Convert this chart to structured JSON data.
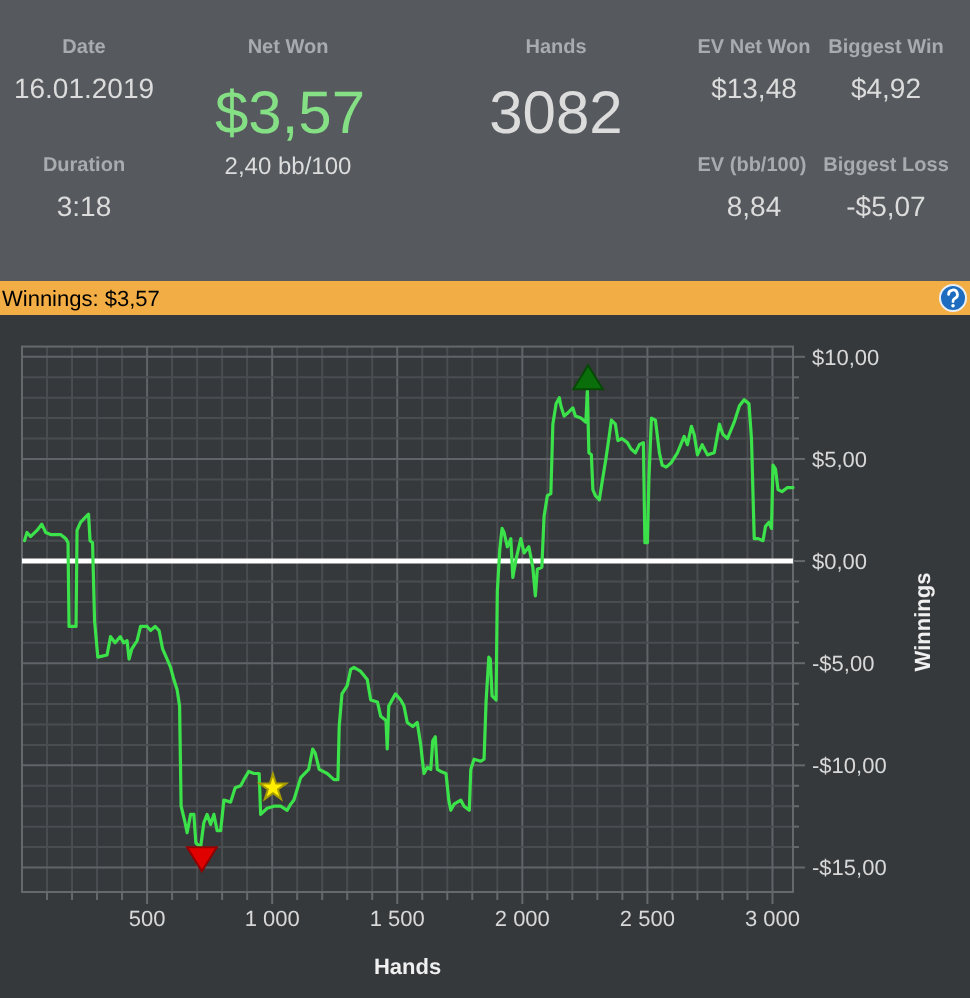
{
  "chart_data": [
    {
      "type": "other",
      "annotations": [
        "Date",
        "16.01.2019",
        "Net Won",
        "$3,57",
        "2,40 bb/100",
        "Hands",
        "3082",
        "EV Net Won",
        "$13,48",
        "Biggest Win",
        "$4,92",
        "Duration",
        "3:18",
        "EV (bb/100)",
        "8,84",
        "Biggest Loss",
        "-$5,07"
      ],
      "colors": [
        "#a9acaf",
        "#dcdcdc",
        "#a9acaf",
        "#85e085",
        "#dcdcdc",
        "#a9acaf",
        "#dcdcdc",
        "#a9acaf",
        "#dcdcdc",
        "#a9acaf",
        "#dcdcdc",
        "#a9acaf",
        "#dcdcdc",
        "#a9acaf",
        "#dcdcdc",
        "#a9acaf",
        "#dcdcdc"
      ]
    },
    {
      "type": "line",
      "title": "Winnings: $3,57",
      "xlabel": "Hands",
      "ylabel": "Winnings",
      "xlim": [
        0,
        3082
      ],
      "ylim": [
        -16.2,
        10.5
      ],
      "xticks": [
        {
          "value": 100,
          "label": null
        },
        {
          "value": 200,
          "label": null
        },
        {
          "value": 300,
          "label": null
        },
        {
          "value": 400,
          "label": null
        },
        {
          "value": 500,
          "label": "500"
        },
        {
          "value": 600,
          "label": null
        },
        {
          "value": 700,
          "label": null
        },
        {
          "value": 800,
          "label": null
        },
        {
          "value": 900,
          "label": null
        },
        {
          "value": 1000,
          "label": "1 000"
        },
        {
          "value": 1100,
          "label": null
        },
        {
          "value": 1200,
          "label": null
        },
        {
          "value": 1300,
          "label": null
        },
        {
          "value": 1400,
          "label": null
        },
        {
          "value": 1500,
          "label": "1 500"
        },
        {
          "value": 1600,
          "label": null
        },
        {
          "value": 1700,
          "label": null
        },
        {
          "value": 1800,
          "label": null
        },
        {
          "value": 1900,
          "label": null
        },
        {
          "value": 2000,
          "label": "2 000"
        },
        {
          "value": 2100,
          "label": null
        },
        {
          "value": 2200,
          "label": null
        },
        {
          "value": 2300,
          "label": null
        },
        {
          "value": 2400,
          "label": null
        },
        {
          "value": 2500,
          "label": "2 500"
        },
        {
          "value": 2600,
          "label": null
        },
        {
          "value": 2700,
          "label": null
        },
        {
          "value": 2800,
          "label": null
        },
        {
          "value": 2900,
          "label": null
        },
        {
          "value": 3000,
          "label": "3 000"
        }
      ],
      "yticks": [
        {
          "value": -15,
          "label": "-$15,00"
        },
        {
          "value": -14,
          "label": null
        },
        {
          "value": -13,
          "label": null
        },
        {
          "value": -12,
          "label": null
        },
        {
          "value": -11,
          "label": null
        },
        {
          "value": -10,
          "label": "-$10,00"
        },
        {
          "value": -9,
          "label": null
        },
        {
          "value": -8,
          "label": null
        },
        {
          "value": -7,
          "label": null
        },
        {
          "value": -6,
          "label": null
        },
        {
          "value": -5,
          "label": "-$5,00"
        },
        {
          "value": -4,
          "label": null
        },
        {
          "value": -3,
          "label": null
        },
        {
          "value": -2,
          "label": null
        },
        {
          "value": -1,
          "label": null
        },
        {
          "value": 0,
          "label": "$0,00"
        },
        {
          "value": 1,
          "label": null
        },
        {
          "value": 2,
          "label": null
        },
        {
          "value": 3,
          "label": null
        },
        {
          "value": 4,
          "label": null
        },
        {
          "value": 5,
          "label": "$5,00"
        },
        {
          "value": 6,
          "label": null
        },
        {
          "value": 7,
          "label": null
        },
        {
          "value": 8,
          "label": null
        },
        {
          "value": 9,
          "label": null
        },
        {
          "value": 10,
          "label": "$10,00"
        }
      ],
      "grid": true,
      "ref_lines": [
        {
          "axis": "y",
          "value": 0,
          "color": "#ffffff"
        }
      ],
      "series": [
        {
          "type": "line",
          "color": "#3ce24a",
          "x": [
            10,
            20,
            34,
            60,
            79,
            95,
            114,
            154,
            175,
            184,
            188,
            216,
            220,
            234,
            250,
            266,
            272,
            282,
            290,
            303,
            340,
            354,
            372,
            393,
            406,
            420,
            428,
            439,
            460,
            474,
            500,
            514,
            532,
            548,
            562,
            580,
            594,
            607,
            620,
            630,
            636,
            650,
            660,
            674,
            687,
            695,
            714,
            727,
            740,
            754,
            767,
            780,
            794,
            807,
            834,
            852,
            874,
            887,
            906,
            927,
            948,
            954,
            980,
            1007,
            1034,
            1060,
            1074,
            1087,
            1114,
            1146,
            1162,
            1172,
            1188,
            1220,
            1247,
            1263,
            1268,
            1279,
            1300,
            1314,
            1327,
            1354,
            1380,
            1394,
            1421,
            1434,
            1455,
            1460,
            1466,
            1493,
            1514,
            1527,
            1540,
            1562,
            1580,
            1594,
            1600,
            1607,
            1620,
            1634,
            1642,
            1652,
            1660,
            1674,
            1695,
            1706,
            1714,
            1727,
            1754,
            1767,
            1788,
            1794,
            1807,
            1834,
            1847,
            1855,
            1866,
            1872,
            1879,
            1895,
            1900,
            1910,
            1919,
            1927,
            1940,
            1954,
            1962,
            1975,
            1994,
            2007,
            2026,
            2042,
            2052,
            2060,
            2078,
            2087,
            2100,
            2114,
            2122,
            2135,
            2148,
            2154,
            2167,
            2186,
            2202,
            2212,
            2234,
            2254,
            2260,
            2266,
            2276,
            2282,
            2292,
            2308,
            2318,
            2334,
            2346,
            2356,
            2372,
            2382,
            2398,
            2420,
            2434,
            2452,
            2468,
            2484,
            2490,
            2500,
            2506,
            2516,
            2532,
            2548,
            2559,
            2575,
            2594,
            2620,
            2647,
            2660,
            2676,
            2687,
            2700,
            2719,
            2740,
            2767,
            2788,
            2802,
            2820,
            2847,
            2868,
            2887,
            2906,
            2916,
            2927,
            2943,
            2962,
            2972,
            2986,
            2996,
            3002,
            3012,
            3022,
            3038,
            3060,
            3082
          ],
          "values": [
            1.0,
            1.4,
            1.2,
            1.5,
            1.8,
            1.4,
            1.3,
            1.3,
            1.1,
            0.9,
            -3.2,
            -3.2,
            1.5,
            1.9,
            2.1,
            2.3,
            1.0,
            0.9,
            -2.9,
            -4.7,
            -4.6,
            -3.7,
            -4.0,
            -3.7,
            -4.0,
            -3.9,
            -4.8,
            -4.3,
            -3.9,
            -3.2,
            -3.2,
            -3.4,
            -3.2,
            -3.4,
            -4.3,
            -4.8,
            -5.2,
            -5.8,
            -6.3,
            -7.1,
            -12.0,
            -12.7,
            -13.3,
            -12.4,
            -12.4,
            -13.8,
            -14.0,
            -12.8,
            -12.4,
            -12.9,
            -12.4,
            -13.2,
            -13.2,
            -11.7,
            -11.8,
            -11.1,
            -11.0,
            -10.7,
            -10.3,
            -10.4,
            -10.4,
            -12.4,
            -12.1,
            -12.0,
            -12.0,
            -12.2,
            -11.9,
            -11.7,
            -10.6,
            -10.2,
            -9.2,
            -9.4,
            -10.2,
            -10.4,
            -10.7,
            -10.7,
            -8.1,
            -6.5,
            -6.1,
            -5.3,
            -5.2,
            -5.4,
            -5.8,
            -6.8,
            -6.9,
            -7.6,
            -7.8,
            -9.2,
            -7.1,
            -6.5,
            -6.8,
            -7.1,
            -7.9,
            -8.1,
            -7.9,
            -9.0,
            -9.7,
            -10.4,
            -10.1,
            -10.2,
            -8.8,
            -8.6,
            -10.2,
            -10.3,
            -10.4,
            -11.7,
            -12.2,
            -11.9,
            -11.7,
            -12.0,
            -12.2,
            -10.2,
            -9.7,
            -9.8,
            -9.7,
            -6.9,
            -4.7,
            -4.8,
            -6.6,
            -6.8,
            -1.5,
            0.6,
            1.6,
            1.4,
            0.7,
            1.1,
            -0.8,
            0.1,
            1.1,
            0.4,
            0.7,
            -0.3,
            -1.7,
            -0.4,
            -0.3,
            2.2,
            3.2,
            3.3,
            6.7,
            7.7,
            8.0,
            7.6,
            7.1,
            7.3,
            7.5,
            7.1,
            7.0,
            6.8,
            8.4,
            5.3,
            5.2,
            3.5,
            3.2,
            3.0,
            3.8,
            5.0,
            6.0,
            6.9,
            6.7,
            5.9,
            6.0,
            5.8,
            5.5,
            5.3,
            5.7,
            5.8,
            0.9,
            0.9,
            4.0,
            7.0,
            6.9,
            5.3,
            4.7,
            4.6,
            4.8,
            5.3,
            6.1,
            5.7,
            6.6,
            6.2,
            5.2,
            5.7,
            5.2,
            5.3,
            6.7,
            6.2,
            6.0,
            6.8,
            7.6,
            7.9,
            7.7,
            6.0,
            1.1,
            1.1,
            1.0,
            1.7,
            1.9,
            1.6,
            4.7,
            4.5,
            3.5,
            3.4,
            3.6,
            3.6
          ]
        },
        {
          "type": "scatter",
          "color": "#0a6e0a",
          "marker": "triangle",
          "x": [
            2263
          ],
          "values": [
            9.0
          ]
        },
        {
          "type": "scatter",
          "color": "#e00000",
          "marker": "triangle-down",
          "x": [
            719
          ],
          "values": [
            -14.6
          ]
        },
        {
          "type": "scatter",
          "color": "#ffee00",
          "marker": "star",
          "x": [
            1003
          ],
          "values": [
            -11.1
          ]
        }
      ]
    }
  ]
}
